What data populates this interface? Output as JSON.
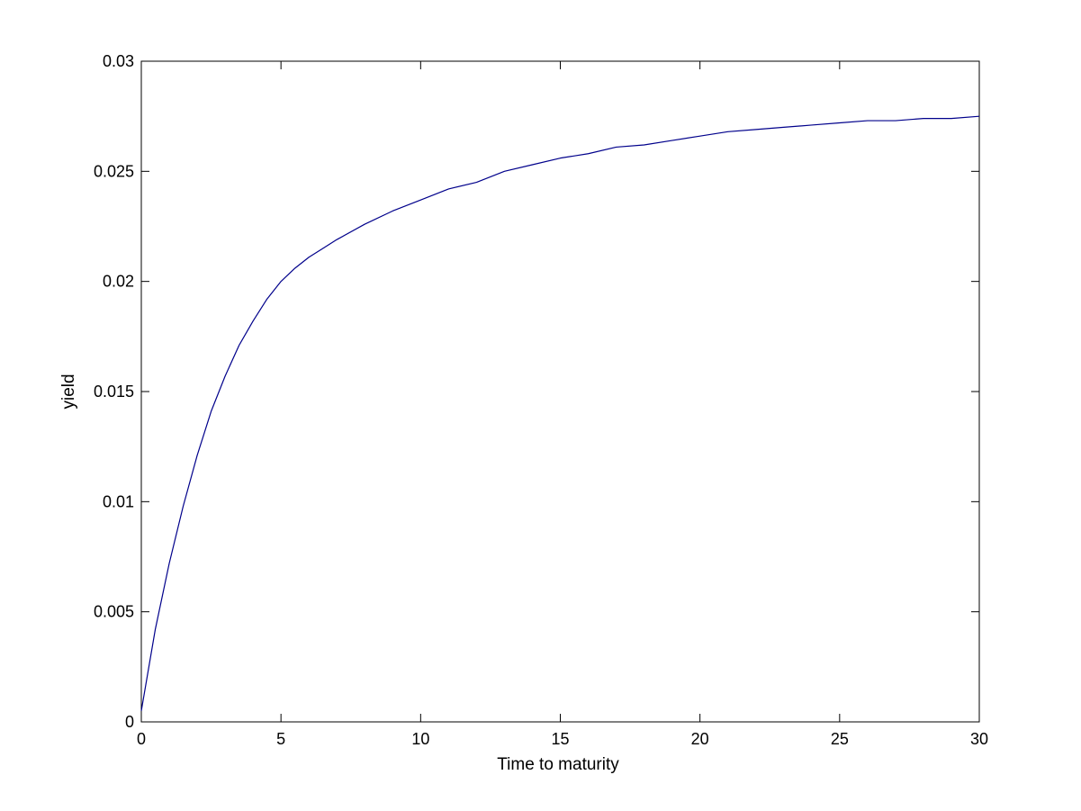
{
  "chart_data": {
    "type": "line",
    "title": "",
    "xlabel": "Time to maturity",
    "ylabel": "yield",
    "xlim": [
      0,
      30
    ],
    "ylim": [
      0,
      0.03
    ],
    "x_ticks": [
      0,
      5,
      10,
      15,
      20,
      25,
      30
    ],
    "x_tick_labels": [
      "0",
      "5",
      "10",
      "15",
      "20",
      "25",
      "30"
    ],
    "y_ticks": [
      0,
      0.005,
      0.01,
      0.015,
      0.02,
      0.025,
      0.03
    ],
    "y_tick_labels": [
      "0",
      "0.005",
      "0.01",
      "0.015",
      "0.02",
      "0.025",
      "0.03"
    ],
    "grid": false,
    "legend": "none",
    "series": [
      {
        "color": "#00008b",
        "x": [
          0,
          0.5,
          1,
          1.5,
          2,
          2.5,
          3,
          3.5,
          4,
          4.5,
          5,
          5.5,
          6,
          6.5,
          7,
          8,
          9,
          10,
          11,
          12,
          13,
          14,
          15,
          16,
          17,
          18,
          19,
          20,
          21,
          22,
          23,
          24,
          25,
          26,
          27,
          28,
          29,
          30
        ],
        "y": [
          0.0005,
          0.0042,
          0.0072,
          0.0098,
          0.0121,
          0.0141,
          0.0157,
          0.0171,
          0.0182,
          0.0192,
          0.02,
          0.0206,
          0.0211,
          0.0215,
          0.0219,
          0.0226,
          0.0232,
          0.0237,
          0.0242,
          0.0245,
          0.025,
          0.0253,
          0.0256,
          0.0258,
          0.0261,
          0.0262,
          0.0264,
          0.0266,
          0.0268,
          0.0269,
          0.027,
          0.0271,
          0.0272,
          0.0273,
          0.0273,
          0.0274,
          0.0274,
          0.0275
        ]
      }
    ]
  }
}
